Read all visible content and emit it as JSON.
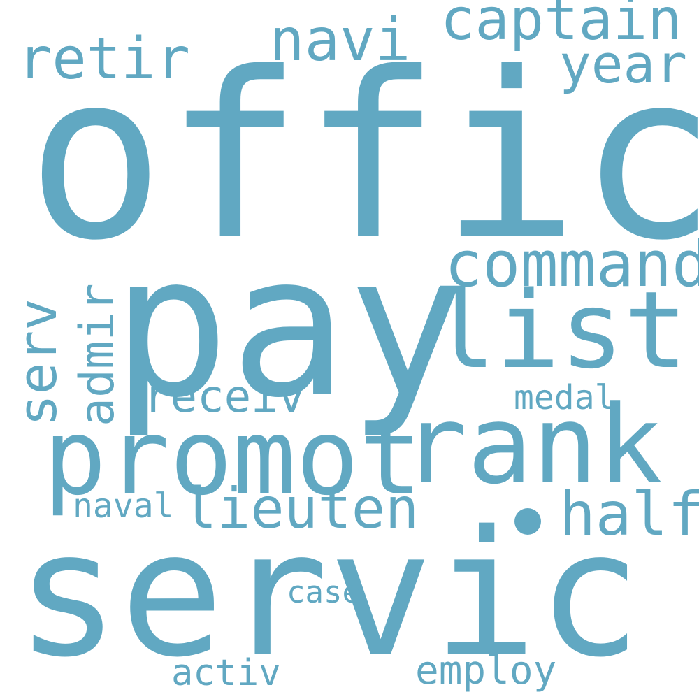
{
  "background_color": "#ffffff",
  "word_color": "#61a8c2",
  "words": {
    "offic": "offic",
    "pay": "pay",
    "servic": "servic",
    "promot": "promot",
    "rank": "rank",
    "list": "list",
    "command": "command",
    "captain": "captain",
    "navi": "navi",
    "retir": "retir",
    "year": "year",
    "lieuten": "lieuten",
    "half": "half",
    "receiv": "receiv",
    "medal": "medal",
    "naval": "naval",
    "case": "case",
    "activ": "activ",
    "employ": "employ",
    "serv": "serv",
    "admir": "admir"
  }
}
